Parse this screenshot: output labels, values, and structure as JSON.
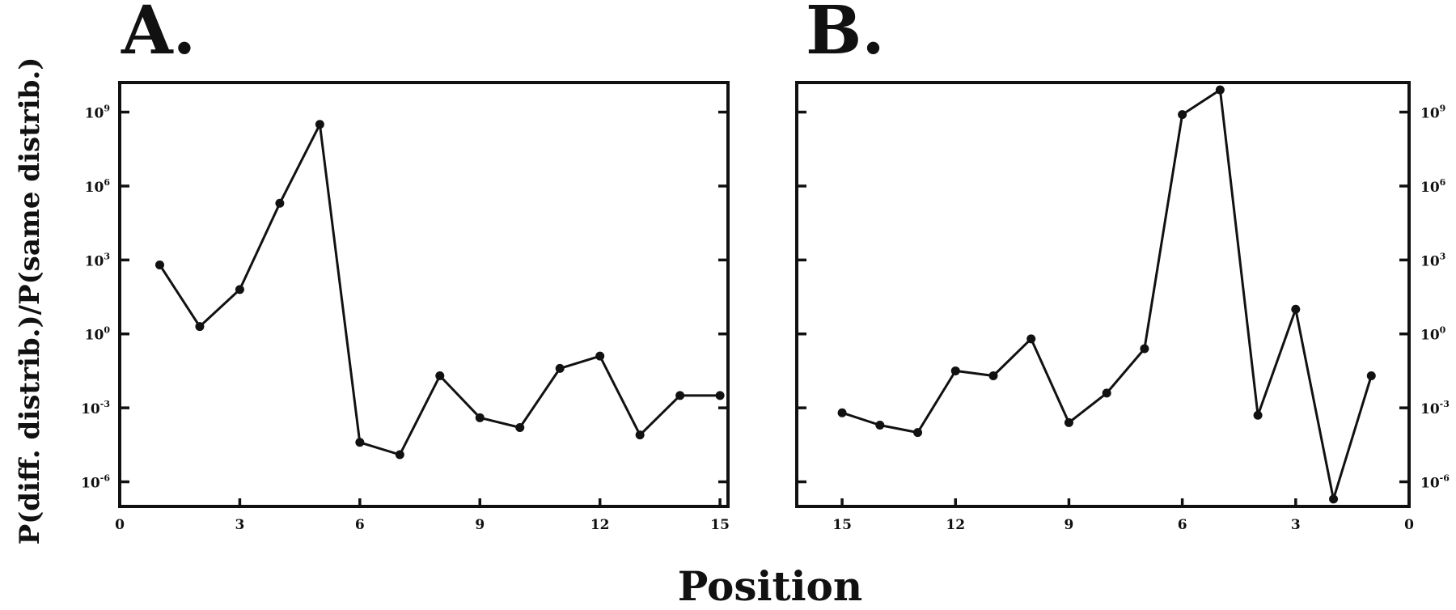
{
  "figure": {
    "ylabel": "P(diff. distrib.)/P(same distrib.)",
    "xlabel": "Position"
  },
  "chart_data": [
    {
      "type": "line",
      "panel_label": "A.",
      "x_direction": "normal",
      "y_scale": "log",
      "y_axis_side": "left",
      "xlim": [
        0,
        15.2
      ],
      "ylim_log10": [
        -7,
        10.2
      ],
      "x_ticks": [
        0,
        3,
        6,
        9,
        12,
        15
      ],
      "x_tick_labels": [
        "0",
        "3",
        "6",
        "9",
        "12",
        "15"
      ],
      "y_ticks_log10": [
        -6,
        -3,
        0,
        3,
        6,
        9
      ],
      "y_tick_labels": [
        {
          "base": "10",
          "exp": "-6"
        },
        {
          "base": "10",
          "exp": "-3"
        },
        {
          "base": "10",
          "exp": "0"
        },
        {
          "base": "10",
          "exp": "3"
        },
        {
          "base": "10",
          "exp": "6"
        },
        {
          "base": "10",
          "exp": "9"
        }
      ],
      "grid": false,
      "x": [
        1,
        2,
        3,
        4,
        5,
        6,
        7,
        8,
        9,
        10,
        11,
        12,
        13,
        14,
        15
      ],
      "log10_y": [
        2.8,
        0.3,
        1.8,
        5.3,
        8.5,
        -4.4,
        -4.9,
        -1.7,
        -3.4,
        -3.8,
        -1.4,
        -0.9,
        -4.1,
        -2.5,
        -2.5
      ]
    },
    {
      "type": "line",
      "panel_label": "B.",
      "x_direction": "reversed",
      "y_scale": "log",
      "y_axis_side": "right",
      "xlim": [
        16.2,
        0
      ],
      "ylim_log10": [
        -7,
        10.2
      ],
      "x_ticks": [
        15,
        12,
        9,
        6,
        3,
        0
      ],
      "x_tick_labels": [
        "15",
        "12",
        "9",
        "6",
        "3",
        "0"
      ],
      "y_ticks_log10": [
        -6,
        -3,
        0,
        3,
        6,
        9
      ],
      "y_tick_labels": [
        {
          "base": "10",
          "exp": "-6"
        },
        {
          "base": "10",
          "exp": "-3"
        },
        {
          "base": "10",
          "exp": "0"
        },
        {
          "base": "10",
          "exp": "3"
        },
        {
          "base": "10",
          "exp": "6"
        },
        {
          "base": "10",
          "exp": "9"
        }
      ],
      "grid": false,
      "x": [
        15,
        14,
        13,
        12,
        11,
        10,
        9,
        8,
        7,
        6,
        5,
        4,
        3,
        2,
        1
      ],
      "log10_y": [
        -3.2,
        -3.7,
        -4.0,
        -1.5,
        -1.7,
        -0.2,
        -3.6,
        -2.4,
        -0.6,
        8.9,
        9.9,
        -3.3,
        1.0,
        -6.7,
        -1.7
      ]
    }
  ]
}
